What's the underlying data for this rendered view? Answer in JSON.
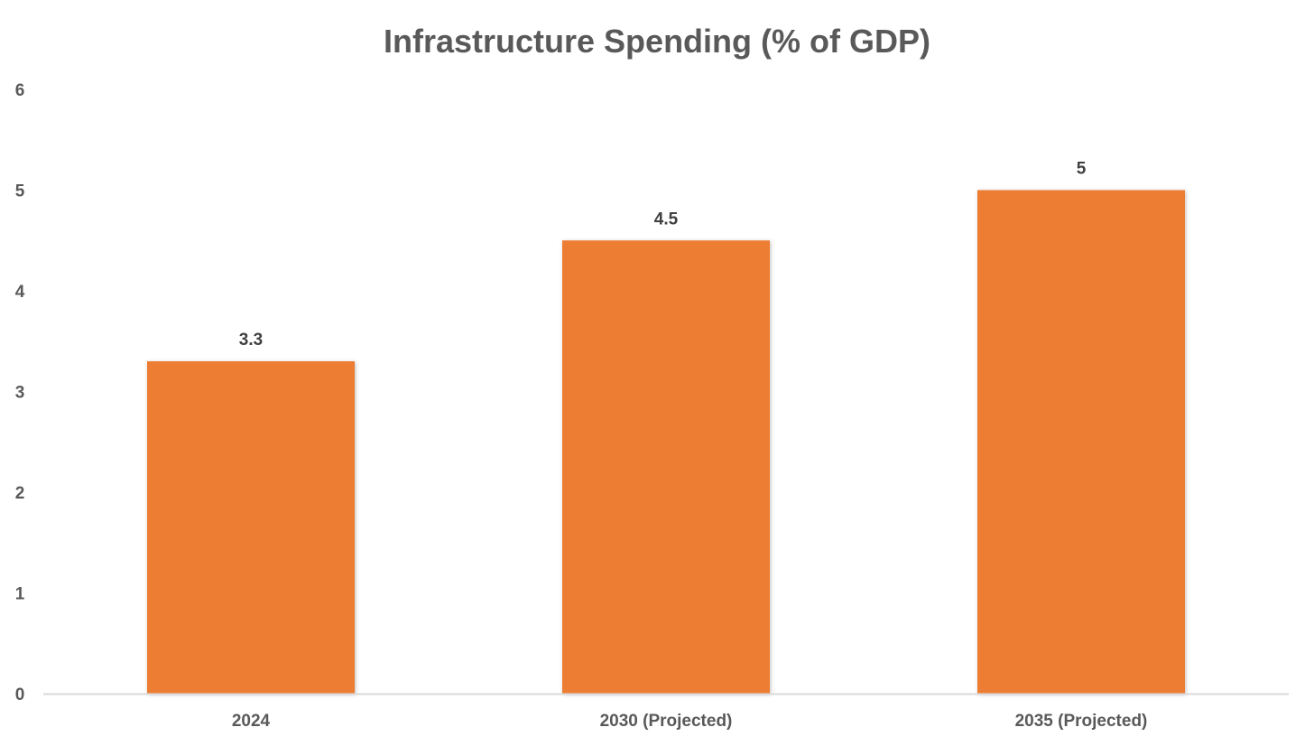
{
  "chart_data": {
    "type": "bar",
    "title": "Infrastructure Spending (% of GDP)",
    "categories": [
      "2024",
      "2030 (Projected)",
      "2035 (Projected)"
    ],
    "values": [
      3.3,
      4.5,
      5
    ],
    "data_labels": [
      "3.3",
      "4.5",
      "5"
    ],
    "xlabel": "",
    "ylabel": "",
    "ylim": [
      0,
      6
    ],
    "y_ticks": [
      0,
      1,
      2,
      3,
      4,
      5,
      6
    ],
    "y_tick_labels": [
      "0",
      "1",
      "2",
      "3",
      "4",
      "5",
      "6"
    ],
    "grid": false,
    "legend": "none"
  },
  "colors": {
    "bar": "#ED7D31",
    "axis_line": "#D9D9D9",
    "title": "#595959",
    "tick_label": "#595959",
    "data_label": "#404040"
  }
}
